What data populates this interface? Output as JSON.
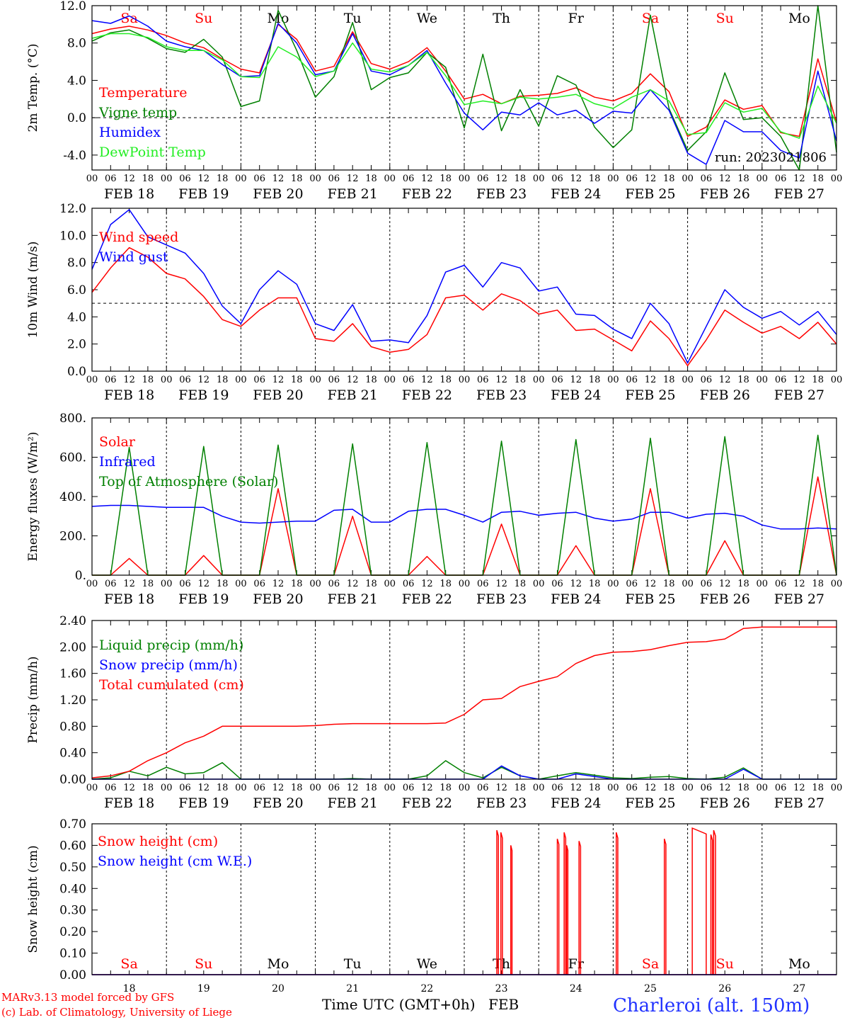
{
  "footer": {
    "model": "MARv3.13 model forced by GFS",
    "lab": "(c) Lab. of Climatology, University of Liege",
    "station": "Charleroi (alt. 150m)",
    "time_label": "Time UTC (GMT+0h)",
    "month": "FEB"
  },
  "axis": {
    "hours": [
      "00",
      "06",
      "12",
      "18"
    ],
    "date_labels": [
      "FEB 18",
      "FEB 19",
      "FEB 20",
      "FEB 21",
      "FEB 22",
      "FEB 23",
      "FEB 24",
      "FEB 25",
      "FEB 26",
      "FEB 27"
    ],
    "day_names": [
      "Sa",
      "Su",
      "Mo",
      "Tu",
      "We",
      "Th",
      "Fr",
      "Sa",
      "Su",
      "Mo"
    ],
    "weekend": [
      true,
      true,
      false,
      false,
      false,
      false,
      false,
      true,
      true,
      false
    ],
    "day_numbers": [
      "18",
      "19",
      "20",
      "21",
      "22",
      "23",
      "24",
      "25",
      "26",
      "27"
    ]
  },
  "colors": {
    "red": "#ff0000",
    "green": "#008000",
    "blue": "#0000ff",
    "lime": "#22ee22",
    "weekend": "#ff0000"
  },
  "chart_data": [
    {
      "type": "line",
      "ylabel": "2m Temp. (°C)",
      "ylim": [
        -5.6,
        12
      ],
      "yticks": [
        12,
        8,
        4,
        0,
        -4
      ],
      "ytick_labels": [
        "12.0",
        "8.0",
        "4.0",
        "0.0",
        "-4.0"
      ],
      "ref_line": 0,
      "show_day_names": true,
      "annotation": "run: 2023021806",
      "x": [
        0,
        6,
        12,
        18,
        24,
        30,
        36,
        42,
        48,
        54,
        60,
        66,
        72,
        78,
        84,
        90,
        96,
        102,
        108,
        114,
        120,
        126,
        132,
        138,
        144,
        150,
        156,
        162,
        168,
        174,
        180,
        186,
        192,
        198,
        204,
        210,
        216,
        222,
        228,
        234,
        240
      ],
      "series": [
        {
          "name": "Temperature",
          "color": "red",
          "values": [
            9,
            9.5,
            9.8,
            9.4,
            8.8,
            8,
            7.5,
            6.3,
            5.2,
            4.8,
            10,
            8.4,
            5,
            5.5,
            9.2,
            5.8,
            5.2,
            6,
            7.5,
            5,
            2,
            2.5,
            1.5,
            2.3,
            2.4,
            2.6,
            3.2,
            2.2,
            1.8,
            2.6,
            4.7,
            2.8,
            -2,
            -1,
            1.9,
            0.9,
            1.3,
            -1.6,
            -2,
            6.3,
            -0.5
          ]
        },
        {
          "name": "Vigne temp",
          "color": "green",
          "values": [
            8.2,
            9.1,
            9.4,
            8.5,
            7.4,
            7,
            8.4,
            6.5,
            1.2,
            1.8,
            11.5,
            7.2,
            2.2,
            4.4,
            10.2,
            3,
            4.3,
            4.8,
            7,
            5.4,
            -1.1,
            6.8,
            -1.4,
            3,
            -0.9,
            4.5,
            3.5,
            -1,
            -3.2,
            -1.3,
            11,
            1,
            -3.5,
            -1.5,
            4.8,
            -0.2,
            0,
            -2,
            -5.6,
            12,
            -3.7
          ]
        },
        {
          "name": "Humidex",
          "color": "blue",
          "values": [
            10.4,
            10.1,
            10.9,
            9.8,
            8.2,
            7.6,
            7.2,
            5.7,
            4.4,
            4.5,
            10.1,
            8,
            4.6,
            5,
            9,
            5,
            4.6,
            5.6,
            7.2,
            3.7,
            0.5,
            -1.3,
            0.6,
            0.3,
            1.6,
            0.3,
            0.8,
            -0.6,
            0.7,
            0.5,
            3,
            0.8,
            -3.8,
            -5,
            -0.3,
            -1.5,
            -1.5,
            -3.5,
            -4.3,
            5,
            -2.5
          ]
        },
        {
          "name": "DewPoint Temp",
          "color": "lime",
          "values": [
            8.5,
            9,
            9,
            8.6,
            7.6,
            7.2,
            7.2,
            6.2,
            4.4,
            4.3,
            7.6,
            6.5,
            4.4,
            5,
            8,
            5.2,
            4.9,
            5.6,
            7,
            4.5,
            1.4,
            1.8,
            1.5,
            2.2,
            2,
            2.2,
            2.5,
            1.5,
            1,
            2.2,
            3,
            1.8,
            -1.8,
            -1.6,
            1.6,
            0.6,
            1,
            -1.5,
            -2.2,
            3.4,
            -0.6
          ]
        }
      ],
      "legend": [
        "Temperature",
        "Vigne temp",
        "Humidex",
        "DewPoint Temp"
      ]
    },
    {
      "type": "line",
      "ylabel": "10m Wind (m/s)",
      "ylim": [
        0,
        12
      ],
      "yticks": [
        12,
        10,
        8,
        6,
        4,
        2,
        0
      ],
      "ytick_labels": [
        "12.0",
        "10.0",
        "8.0",
        "6.0",
        "4.0",
        "2.0",
        "0.0"
      ],
      "ref_line": 5,
      "x": [
        0,
        6,
        12,
        18,
        24,
        30,
        36,
        42,
        48,
        54,
        60,
        66,
        72,
        78,
        84,
        90,
        96,
        102,
        108,
        114,
        120,
        126,
        132,
        138,
        144,
        150,
        156,
        162,
        168,
        174,
        180,
        186,
        192,
        198,
        204,
        210,
        216,
        222,
        228,
        234,
        240
      ],
      "series": [
        {
          "name": "Wind speed",
          "color": "red",
          "values": [
            5.8,
            7.6,
            9.1,
            8.4,
            7.2,
            6.8,
            5.5,
            3.8,
            3.3,
            4.5,
            5.4,
            5.4,
            2.4,
            2.2,
            3.5,
            1.8,
            1.4,
            1.6,
            2.7,
            5.4,
            5.6,
            4.5,
            5.7,
            5.2,
            4.2,
            4.5,
            3,
            3.1,
            2.3,
            1.5,
            3.7,
            2.4,
            0.4,
            2.3,
            4.5,
            3.6,
            2.8,
            3.3,
            2.4,
            3.6,
            2
          ]
        },
        {
          "name": "Wind gust",
          "color": "blue",
          "values": [
            7.5,
            10.8,
            11.9,
            9.9,
            9.3,
            8.7,
            7.2,
            4.8,
            3.5,
            6,
            7.4,
            6.4,
            3.5,
            3,
            4.9,
            2.2,
            2.3,
            2.1,
            4.1,
            7.3,
            7.8,
            6.2,
            8,
            7.6,
            5.9,
            6.2,
            4.2,
            4.1,
            3.1,
            2.4,
            5,
            3.5,
            0.6,
            3.3,
            6,
            4.7,
            3.9,
            4.4,
            3.4,
            4.4,
            2.7
          ]
        }
      ],
      "legend": [
        "Wind speed",
        "Wind gust"
      ]
    },
    {
      "type": "line",
      "ylabel": "Energy fluxes (W/m²)",
      "ylim": [
        0,
        800
      ],
      "yticks": [
        800,
        600,
        400,
        200,
        0
      ],
      "ytick_labels": [
        "800.",
        "600.",
        "400.",
        "200.",
        "0."
      ],
      "x": [
        0,
        6,
        12,
        18,
        24,
        30,
        36,
        42,
        48,
        54,
        60,
        66,
        72,
        78,
        84,
        90,
        96,
        102,
        108,
        114,
        120,
        126,
        132,
        138,
        144,
        150,
        156,
        162,
        168,
        174,
        180,
        186,
        192,
        198,
        204,
        210,
        216,
        222,
        228,
        234,
        240
      ],
      "series": [
        {
          "name": "Solar",
          "color": "red",
          "values": [
            0,
            0,
            85,
            0,
            0,
            0,
            100,
            0,
            0,
            0,
            440,
            0,
            0,
            0,
            300,
            0,
            0,
            0,
            95,
            0,
            0,
            0,
            260,
            0,
            0,
            0,
            150,
            0,
            0,
            0,
            440,
            0,
            0,
            0,
            175,
            0,
            0,
            0,
            0,
            500,
            0
          ]
        },
        {
          "name": "Infrared",
          "color": "blue",
          "values": [
            350,
            355,
            355,
            350,
            345,
            345,
            345,
            300,
            270,
            265,
            270,
            275,
            275,
            330,
            335,
            270,
            270,
            325,
            335,
            335,
            305,
            270,
            320,
            325,
            305,
            315,
            320,
            290,
            275,
            285,
            320,
            320,
            290,
            310,
            315,
            300,
            255,
            235,
            235,
            240,
            235
          ]
        },
        {
          "name": "Top of Atmosphere (Solar)",
          "color": "green",
          "values": [
            0,
            0,
            650,
            0,
            0,
            0,
            655,
            0,
            0,
            0,
            662,
            0,
            0,
            0,
            668,
            0,
            0,
            0,
            675,
            0,
            0,
            0,
            682,
            0,
            0,
            0,
            690,
            0,
            0,
            0,
            697,
            0,
            0,
            0,
            705,
            0,
            0,
            0,
            0,
            712,
            0
          ]
        }
      ],
      "legend": [
        "Solar",
        "Infrared",
        "Top of Atmosphere (Solar)"
      ]
    },
    {
      "type": "line",
      "ylabel": "Precip (mm/h)",
      "ylim": [
        0,
        2.4
      ],
      "yticks": [
        2.4,
        2,
        1.6,
        1.2,
        0.8,
        0.4,
        0
      ],
      "ytick_labels": [
        "2.40",
        "2.00",
        "1.60",
        "1.20",
        "0.80",
        "0.40",
        "0.00"
      ],
      "x": [
        0,
        6,
        12,
        18,
        24,
        30,
        36,
        42,
        48,
        54,
        60,
        66,
        72,
        78,
        84,
        90,
        96,
        102,
        108,
        114,
        120,
        126,
        132,
        138,
        144,
        150,
        156,
        162,
        168,
        174,
        180,
        186,
        192,
        198,
        204,
        210,
        216,
        222,
        228,
        234,
        240
      ],
      "series": [
        {
          "name": "Liquid precip (mm/h)",
          "color": "green",
          "values": [
            0,
            0.02,
            0.12,
            0.05,
            0.18,
            0.08,
            0.1,
            0.25,
            0,
            0,
            0,
            0,
            0,
            0,
            0.01,
            0,
            0,
            0,
            0.05,
            0.28,
            0.1,
            0.02,
            0.18,
            0.05,
            0,
            0.05,
            0.1,
            0.06,
            0.02,
            0.01,
            0.03,
            0.04,
            0.01,
            0,
            0.03,
            0.17,
            0,
            0,
            0,
            0,
            0
          ]
        },
        {
          "name": "Snow precip (mm/h)",
          "color": "blue",
          "values": [
            0,
            0,
            0,
            0,
            0,
            0,
            0,
            0,
            0,
            0,
            0,
            0,
            0,
            0,
            0,
            0,
            0,
            0,
            0,
            0,
            0,
            0,
            0.2,
            0.05,
            0,
            0,
            0.08,
            0.04,
            0,
            0,
            0,
            0,
            0,
            0,
            0,
            0.15,
            0,
            0,
            0,
            0,
            0
          ]
        },
        {
          "name": "Total cumulated (cm)",
          "color": "red",
          "values": [
            0.02,
            0.05,
            0.12,
            0.28,
            0.4,
            0.55,
            0.65,
            0.8,
            0.8,
            0.8,
            0.8,
            0.8,
            0.81,
            0.83,
            0.84,
            0.84,
            0.84,
            0.84,
            0.84,
            0.85,
            0.98,
            1.2,
            1.22,
            1.4,
            1.48,
            1.55,
            1.75,
            1.87,
            1.92,
            1.93,
            1.96,
            2.02,
            2.07,
            2.08,
            2.12,
            2.28,
            2.3,
            2.3,
            2.3,
            2.3,
            2.3
          ]
        }
      ],
      "legend": [
        "Liquid precip (mm/h)",
        "Snow precip (mm/h)",
        "Total cumulated (cm)"
      ]
    },
    {
      "type": "line",
      "ylabel": "Snow height (cm)",
      "ylim": [
        0,
        0.7
      ],
      "yticks": [
        0.7,
        0.6,
        0.5,
        0.4,
        0.3,
        0.2,
        0.1,
        0
      ],
      "ytick_labels": [
        "0.70",
        "0.60",
        "0.50",
        "0.40",
        "0.30",
        "0.20",
        "0.10",
        "0.00"
      ],
      "show_day_names": true,
      "show_day_numbers": true,
      "series": [
        {
          "name": "Snow height (cm)",
          "color": "red",
          "spikes": [
            {
              "t0": 130.5,
              "t1": 131.0,
              "v": 0.67
            },
            {
              "t0": 131.8,
              "t1": 132.3,
              "v": 0.66
            },
            {
              "t0": 135.0,
              "t1": 135.4,
              "v": 0.6
            },
            {
              "t0": 150.0,
              "t1": 150.5,
              "v": 0.63
            },
            {
              "t0": 152.2,
              "t1": 152.7,
              "v": 0.66
            },
            {
              "t0": 153.0,
              "t1": 153.4,
              "v": 0.6
            },
            {
              "t0": 157.0,
              "t1": 157.5,
              "v": 0.62
            },
            {
              "t0": 169.0,
              "t1": 169.5,
              "v": 0.66
            },
            {
              "t0": 184.5,
              "t1": 185.0,
              "v": 0.63
            },
            {
              "t0": 193.5,
              "t1": 198.0,
              "v": 0.68
            },
            {
              "t0": 199.5,
              "t1": 200.0,
              "v": 0.65
            },
            {
              "t0": 200.4,
              "t1": 201.0,
              "v": 0.67
            }
          ]
        },
        {
          "name": "Snow height (cm W.E.)",
          "color": "blue",
          "values": [
            0,
            0
          ]
        }
      ],
      "legend": [
        "Snow height (cm)",
        "Snow height (cm W.E.)"
      ]
    }
  ]
}
